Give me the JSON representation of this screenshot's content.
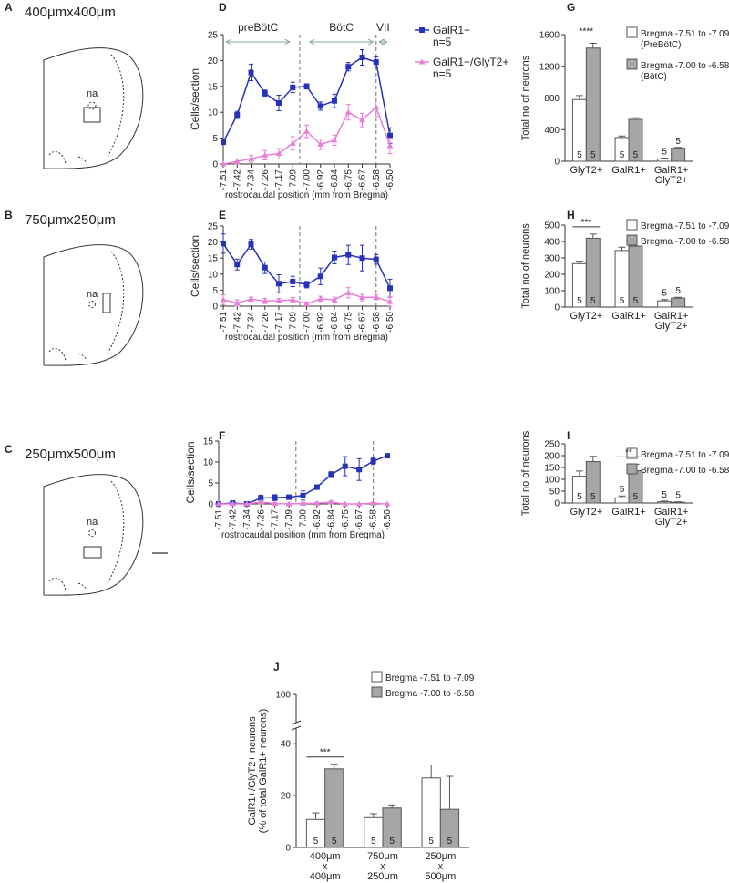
{
  "schematics": [
    {
      "panel": "A",
      "title": "400μmx400μm",
      "label": "na"
    },
    {
      "panel": "B",
      "title": "750μmx250μm",
      "label": "na"
    },
    {
      "panel": "C",
      "title": "250μmx500μm",
      "label": "na"
    }
  ],
  "chart_data": [
    {
      "panel": "D",
      "type": "line",
      "categories": [
        "-7.51",
        "-7.42",
        "-7.34",
        "-7.26",
        "-7.17",
        "-7.09",
        "-7.00",
        "-6.92",
        "-6.84",
        "-6.75",
        "-6.67",
        "-6.58",
        "-6.50"
      ],
      "xlabel": "rostrocaudal position (mm from Bregma)",
      "ylabel": "Cells/section",
      "ylim": [
        0,
        25
      ],
      "yticks": [
        0,
        5,
        10,
        15,
        20,
        25
      ],
      "sections": [
        {
          "label": "preBötC",
          "from": "-7.51",
          "to": "-7.09"
        },
        {
          "label": "BötC",
          "from": "-7.00",
          "to": "-6.58"
        },
        {
          "label": "VII",
          "from": "-6.58",
          "to": "-6.50"
        }
      ],
      "legend": true,
      "series": [
        {
          "name": "GalR1+",
          "n": "n=5",
          "color": "#2633b8",
          "marker": "square",
          "values": [
            4.2,
            9.5,
            17.7,
            13.7,
            11.8,
            14.8,
            15.0,
            11.2,
            12.2,
            18.8,
            20.6,
            19.7,
            5.5
          ],
          "errors": [
            0,
            0.7,
            1.6,
            0.6,
            1.5,
            1.0,
            0.5,
            0.8,
            1.3,
            0.8,
            1.5,
            1.0,
            1.5
          ]
        },
        {
          "name": "GalR1+/GlyT2+",
          "n": "n=5",
          "color": "#e77fd6",
          "marker": "triangle",
          "values": [
            0,
            0.5,
            1.0,
            1.7,
            2.0,
            4.0,
            6.3,
            3.8,
            4.6,
            10.0,
            8.5,
            11.0,
            3.5
          ],
          "errors": [
            0,
            0.5,
            0.7,
            0.9,
            1.0,
            1.3,
            1.2,
            1.0,
            1.0,
            1.5,
            1.3,
            1.8,
            1.5
          ]
        }
      ]
    },
    {
      "panel": "E",
      "type": "line",
      "categories": [
        "-7.51",
        "-7.42",
        "-7.34",
        "-7.26",
        "-7.17",
        "-7.09",
        "-7.00",
        "-6.92",
        "-6.84",
        "-6.75",
        "-6.67",
        "-6.58",
        "-6.50"
      ],
      "xlabel": "rostrocaudal position (mm from Bregma)",
      "ylabel": "Cells/section",
      "ylim": [
        0,
        25
      ],
      "yticks": [
        0,
        5,
        10,
        15,
        20,
        25
      ],
      "sections": [
        {
          "from": "-7.51",
          "to": "-7.09"
        },
        {
          "from": "-7.00",
          "to": "-6.58"
        },
        {
          "from": "-6.58",
          "to": "-6.50"
        }
      ],
      "series": [
        {
          "color": "#2633b8",
          "marker": "square",
          "values": [
            19.5,
            13.0,
            19.3,
            12.0,
            7.0,
            7.7,
            6.7,
            9.3,
            15.2,
            16.0,
            15.0,
            14.6,
            5.6
          ],
          "errors": [
            3.0,
            1.7,
            1.5,
            1.8,
            2.8,
            1.6,
            1.0,
            2.6,
            2.0,
            3.0,
            4.0,
            1.5,
            2.8
          ]
        },
        {
          "color": "#e77fd6",
          "marker": "triangle",
          "values": [
            2.0,
            1.0,
            2.2,
            1.6,
            1.7,
            2.0,
            0.7,
            2.3,
            2.0,
            4.2,
            2.7,
            2.8,
            1.4
          ],
          "errors": [
            1.5,
            1.0,
            0.6,
            0.8,
            0.7,
            0.7,
            0.6,
            0.8,
            0.8,
            1.6,
            1.0,
            0.8,
            1.5
          ]
        }
      ]
    },
    {
      "panel": "F",
      "type": "line",
      "categories": [
        "-7.51",
        "-7.42",
        "-7.34",
        "-7.26",
        "-7.17",
        "-7.09",
        "-7.00",
        "-6.92",
        "-6.84",
        "-6.75",
        "-6.67",
        "-6.58",
        "-6.50"
      ],
      "xlabel": "rostrocaudal position (mm from Bregma)",
      "ylabel": "Cells/section",
      "ylim": [
        0,
        15
      ],
      "yticks": [
        0,
        5,
        10,
        15
      ],
      "sections": [
        {
          "from": "-7.51",
          "to": "-7.09"
        },
        {
          "from": "-7.00",
          "to": "-6.58"
        },
        {
          "from": "-6.58",
          "to": "-6.50"
        }
      ],
      "series": [
        {
          "color": "#2633b8",
          "marker": "square",
          "values": [
            0,
            0.2,
            0,
            1.4,
            1.5,
            1.6,
            2.0,
            4.0,
            7.0,
            9.0,
            8.2,
            10.2,
            11.5
          ],
          "errors": [
            0,
            0.2,
            0,
            0.7,
            0.7,
            0.5,
            1.1,
            0.5,
            0.7,
            2.3,
            2.6,
            0.8,
            0.4
          ]
        },
        {
          "color": "#e77fd6",
          "marker": "triangle",
          "values": [
            0,
            0,
            0,
            0.4,
            0.1,
            0,
            0.1,
            0.2,
            0.4,
            0,
            0,
            0.2,
            0
          ],
          "errors": [
            0,
            0,
            0,
            0.3,
            0.2,
            0,
            0.2,
            0.2,
            0.3,
            0,
            0,
            0.2,
            0
          ]
        }
      ]
    },
    {
      "panel": "G",
      "type": "bar",
      "categories": [
        "GlyT2+",
        "GalR1+",
        [
          "GalR1+",
          "GlyT2+"
        ]
      ],
      "ylabel": "Total no of neurons",
      "ylim": [
        0,
        1600
      ],
      "yticks": [
        0,
        400,
        800,
        1200,
        1600
      ],
      "series": [
        {
          "name": "Bregma -7.51 to -7.09",
          "region": "(PreBötC)",
          "color": "#ffffff",
          "values": [
            780,
            300,
            30
          ],
          "errors": [
            50,
            20,
            10
          ],
          "n": [
            5,
            5,
            5
          ]
        },
        {
          "name": "Bregma -7.00 to -6.58",
          "region": "(BötC)",
          "color": "#a6a6a6",
          "values": [
            1430,
            530,
            165
          ],
          "errors": [
            60,
            20,
            10
          ],
          "n": [
            5,
            5,
            5
          ]
        }
      ],
      "annotations": [
        {
          "text": "****",
          "category": "GlyT2+"
        }
      ]
    },
    {
      "panel": "H",
      "type": "bar",
      "categories": [
        "GlyT2+",
        "GalR1+",
        [
          "GalR1+",
          "GlyT2+"
        ]
      ],
      "ylabel": "Total no of neurons",
      "ylim": [
        0,
        500
      ],
      "yticks": [
        0,
        100,
        200,
        300,
        400,
        500
      ],
      "series": [
        {
          "name": "Bregma -7.51 to -7.09",
          "color": "#ffffff",
          "values": [
            265,
            345,
            38
          ],
          "errors": [
            15,
            20,
            8
          ],
          "n": [
            5,
            5,
            5
          ]
        },
        {
          "name": "Bregma -7.00 to -6.58",
          "color": "#a6a6a6",
          "values": [
            420,
            372,
            55
          ],
          "errors": [
            25,
            30,
            5
          ],
          "n": [
            5,
            5,
            5
          ]
        }
      ],
      "annotations": [
        {
          "text": "***",
          "category": "GlyT2+"
        }
      ]
    },
    {
      "panel": "I",
      "type": "bar",
      "categories": [
        "GlyT2+",
        "GalR1+",
        [
          "GalR1+",
          "GlyT2+"
        ]
      ],
      "ylabel": "Total no of neurons",
      "ylim": [
        0,
        250
      ],
      "yticks": [
        0,
        50,
        100,
        150,
        200,
        250
      ],
      "series": [
        {
          "name": "Bregma -7.51 to -7.09",
          "color": "#ffffff",
          "values": [
            113,
            22,
            5
          ],
          "errors": [
            22,
            8,
            3
          ],
          "n": [
            5,
            5,
            5
          ]
        },
        {
          "name": "Bregma -7.00 to -6.58",
          "color": "#a6a6a6",
          "values": [
            175,
            136,
            3
          ],
          "errors": [
            22,
            28,
            2
          ],
          "n": [
            5,
            5,
            5
          ]
        }
      ],
      "annotations": [
        {
          "text": "**",
          "category": "GalR1+"
        }
      ]
    },
    {
      "panel": "J",
      "type": "bar",
      "categories": [
        [
          "400μm",
          "x",
          "400μm"
        ],
        [
          "750μm",
          "x",
          "250μm"
        ],
        [
          "250μm",
          "x",
          "500μm"
        ]
      ],
      "ylabel": [
        "GalR1+/GlyT2+ neurons",
        "(% of total GalR1+ neurons)"
      ],
      "ylim": [
        0,
        100
      ],
      "yticks": [
        0,
        20,
        40,
        100
      ],
      "axis_break": true,
      "series": [
        {
          "name": "Bregma -7.51 to -7.09",
          "color": "#ffffff",
          "values": [
            10.8,
            11.5,
            26.8
          ],
          "errors": [
            2.5,
            1.5,
            5.0
          ],
          "n": [
            5,
            5,
            5
          ]
        },
        {
          "name": "Bregma -7.00 to -6.58",
          "color": "#a6a6a6",
          "values": [
            30.3,
            15.2,
            14.7
          ],
          "errors": [
            1.8,
            1.2,
            12.7
          ],
          "n": [
            5,
            5,
            5
          ]
        }
      ],
      "annotations": [
        {
          "text": "***",
          "category": [
            "400μm",
            "x",
            "400μm"
          ]
        }
      ]
    }
  ]
}
